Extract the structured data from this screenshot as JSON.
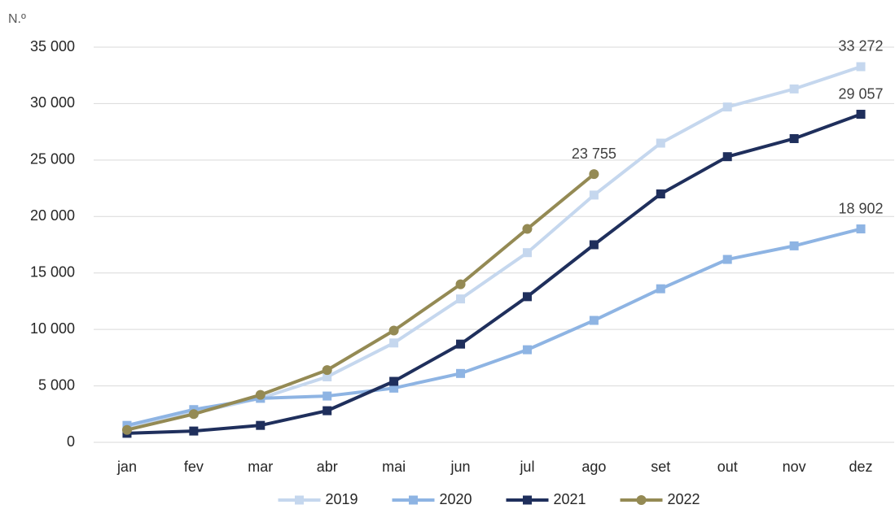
{
  "chart_data": {
    "type": "line",
    "y_label": "N.º",
    "categories": [
      "jan",
      "fev",
      "mar",
      "abr",
      "mai",
      "jun",
      "jul",
      "ago",
      "set",
      "out",
      "nov",
      "dez"
    ],
    "ylim": [
      0,
      35000
    ],
    "yticks": [
      0,
      {
        "value": 5000,
        "label": "5 000"
      },
      {
        "value": 10000,
        "label": "10 000"
      },
      {
        "value": 15000,
        "label": "15 000"
      },
      {
        "value": 20000,
        "label": "20 000"
      },
      {
        "value": 25000,
        "label": "25 000"
      },
      {
        "value": 30000,
        "label": "30 000"
      },
      {
        "value": 35000,
        "label": "35 000"
      }
    ],
    "grid": true,
    "legend": "bottom",
    "series": [
      {
        "name": "2019",
        "color": "#c5d7ee",
        "marker": "square",
        "values": [
          1400,
          2600,
          3900,
          5800,
          8800,
          12700,
          16800,
          21900,
          26500,
          29700,
          31300,
          33272
        ],
        "value_labels": [
          null,
          null,
          null,
          null,
          null,
          null,
          null,
          null,
          null,
          null,
          null,
          "33 272"
        ]
      },
      {
        "name": "2020",
        "color": "#8eb4e3",
        "marker": "square",
        "values": [
          1500,
          2900,
          3900,
          4100,
          4800,
          6100,
          8200,
          10800,
          13600,
          16200,
          17400,
          18902
        ],
        "value_labels": [
          null,
          null,
          null,
          null,
          null,
          null,
          null,
          null,
          null,
          null,
          null,
          "18 902"
        ]
      },
      {
        "name": "2021",
        "color": "#1f2f5c",
        "marker": "square",
        "values": [
          800,
          1000,
          1500,
          2800,
          5400,
          8700,
          12900,
          17500,
          22000,
          25300,
          26900,
          29057
        ],
        "value_labels": [
          null,
          null,
          null,
          null,
          null,
          null,
          null,
          null,
          null,
          null,
          null,
          "29 057"
        ]
      },
      {
        "name": "2022",
        "color": "#948a54",
        "marker": "circle",
        "values": [
          1100,
          2500,
          4200,
          6400,
          9900,
          14000,
          18900,
          23755,
          null,
          null,
          null,
          null
        ],
        "value_labels": [
          null,
          null,
          null,
          null,
          null,
          null,
          null,
          "23 755",
          null,
          null,
          null,
          null
        ]
      }
    ]
  }
}
